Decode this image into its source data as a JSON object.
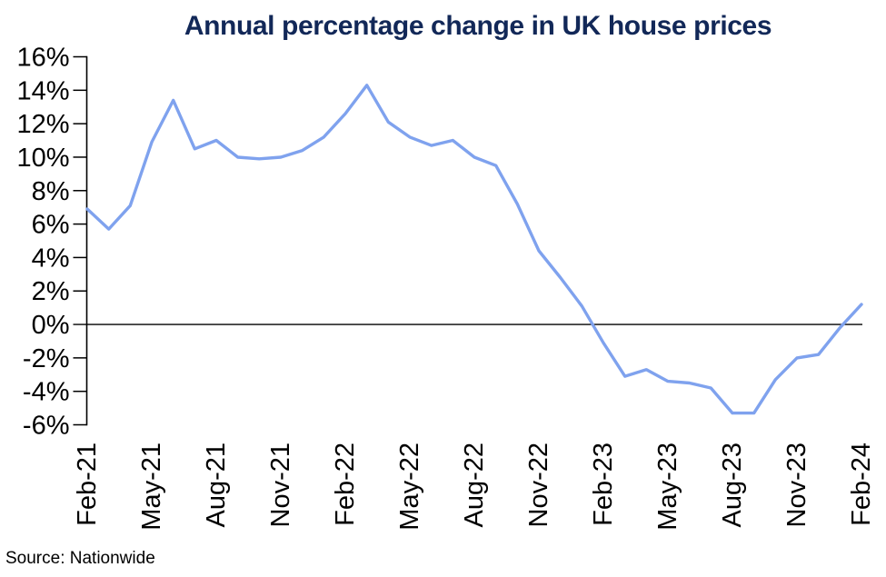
{
  "title": "Annual percentage change in UK house prices",
  "source": "Source: Nationwide",
  "colors": {
    "title": "#122858",
    "line": "#7FA2EE",
    "axis": "#000000",
    "background": "#FFFFFF"
  },
  "chart_data": {
    "type": "line",
    "title": "Annual percentage change in UK house prices",
    "xlabel": "",
    "ylabel": "",
    "x": [
      "Feb-21",
      "Mar-21",
      "Apr-21",
      "May-21",
      "Jun-21",
      "Jul-21",
      "Aug-21",
      "Sep-21",
      "Oct-21",
      "Nov-21",
      "Dec-21",
      "Jan-22",
      "Feb-22",
      "Mar-22",
      "Apr-22",
      "May-22",
      "Jun-22",
      "Jul-22",
      "Aug-22",
      "Sep-22",
      "Oct-22",
      "Nov-22",
      "Dec-22",
      "Jan-23",
      "Feb-23",
      "Mar-23",
      "Apr-23",
      "May-23",
      "Jun-23",
      "Jul-23",
      "Aug-23",
      "Sep-23",
      "Oct-23",
      "Nov-23",
      "Dec-23",
      "Jan-24",
      "Feb-24"
    ],
    "values": [
      6.9,
      5.7,
      7.1,
      10.9,
      13.4,
      10.5,
      11.0,
      10.0,
      9.9,
      10.0,
      10.4,
      11.2,
      12.6,
      14.3,
      12.1,
      11.2,
      10.7,
      11.0,
      10.0,
      9.5,
      7.2,
      4.4,
      2.8,
      1.1,
      -1.1,
      -3.1,
      -2.7,
      -3.4,
      -3.5,
      -3.8,
      -5.3,
      -5.3,
      -3.3,
      -2.0,
      -1.8,
      -0.2,
      1.2
    ],
    "x_tick_labels": [
      "Feb-21",
      "May-21",
      "Aug-21",
      "Nov-21",
      "Feb-22",
      "May-22",
      "Aug-22",
      "Nov-22",
      "Feb-23",
      "May-23",
      "Aug-23",
      "Nov-23",
      "Feb-24"
    ],
    "x_tick_step_months": 3,
    "y_ticks": [
      "16%",
      "14%",
      "12%",
      "10%",
      "8%",
      "6%",
      "4%",
      "2%",
      "0%",
      "-2%",
      "-4%",
      "-6%"
    ],
    "ylim": [
      -6,
      16
    ],
    "y_step": 2,
    "zero_line": true,
    "grid": false,
    "legend": null,
    "source": "Source: Nationwide"
  }
}
